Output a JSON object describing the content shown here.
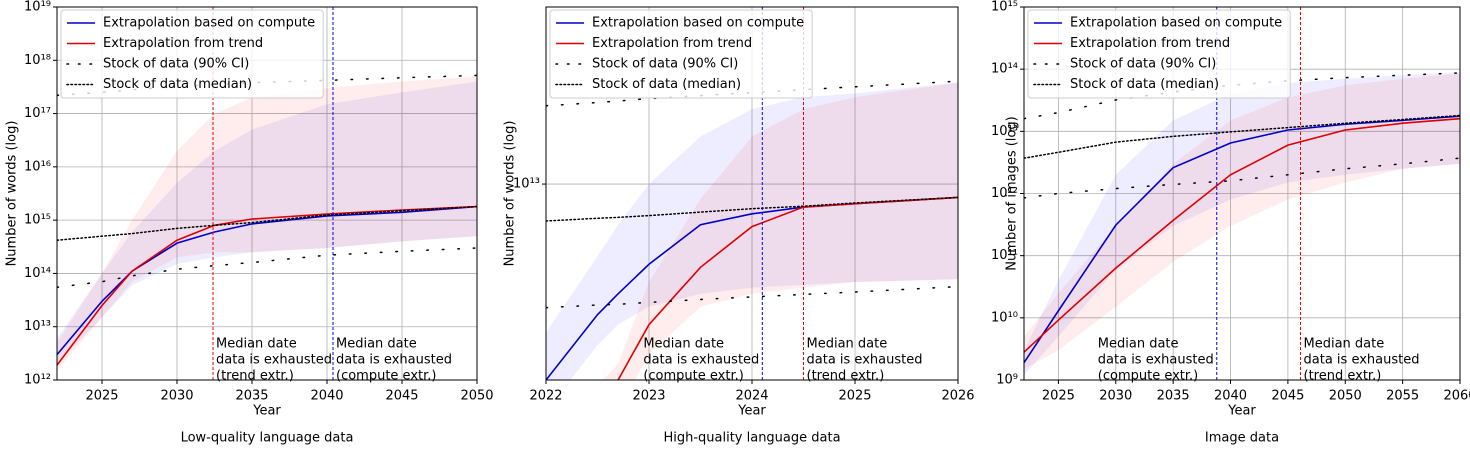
{
  "chart_data": [
    {
      "type": "line",
      "title": "Low-quality language data",
      "xlabel": "Year",
      "ylabel": "Number of words (log)",
      "log_y": true,
      "grid": true,
      "legend": "upper left",
      "xlim": [
        2022,
        2050
      ],
      "xticks": [
        2025,
        2030,
        2035,
        2040,
        2045,
        2050
      ],
      "ylim": [
        1000000000000.0,
        1e+19
      ],
      "yticks": [
        {
          "value": 1000000000000.0,
          "label": "10¹²"
        },
        {
          "value": 10000000000000.0,
          "label": "10¹³"
        },
        {
          "value": 100000000000000.0,
          "label": "10¹⁴"
        },
        {
          "value": 1000000000000000.0,
          "label": "10¹⁵"
        },
        {
          "value": 1e+16,
          "label": "10¹⁶"
        },
        {
          "value": 1e+17,
          "label": "10¹⁷"
        },
        {
          "value": 1e+18,
          "label": "10¹⁸"
        },
        {
          "value": 1e+19,
          "label": "10¹⁹"
        }
      ],
      "x": [
        2022,
        2025,
        2027,
        2030,
        2032.5,
        2035,
        2040,
        2045,
        2050
      ],
      "series": [
        {
          "name": "Extrapolation based on compute",
          "color": "#0000cc",
          "style": "solid",
          "values": [
            3000000000000.0,
            30000000000000.0,
            110000000000000.0,
            370000000000000.0,
            600000000000000.0,
            850000000000000.0,
            1200000000000000.0,
            1400000000000000.0,
            1800000000000000.0
          ]
        },
        {
          "name": "Extrapolation from trend",
          "color": "#dd0000",
          "style": "solid",
          "values": [
            1900000000000.0,
            25000000000000.0,
            110000000000000.0,
            420000000000000.0,
            800000000000000.0,
            1050000000000000.0,
            1300000000000000.0,
            1550000000000000.0,
            1800000000000000.0
          ]
        },
        {
          "name": "Stock of data (90% CI)",
          "color": "#000000",
          "style": "sparse",
          "lower": [
            55000000000000.0,
            70000000000000.0,
            90000000000000.0,
            120000000000000.0,
            140000000000000.0,
            160000000000000.0,
            220000000000000.0,
            260000000000000.0,
            300000000000000.0
          ],
          "upper": [
            2.2e+17,
            2.5e+17,
            2.8e+17,
            3.2e+17,
            3.5e+17,
            3.8e+17,
            4.2e+17,
            4.7e+17,
            5.2e+17
          ]
        },
        {
          "name": "Stock of data (median)",
          "color": "#000000",
          "style": "dotted",
          "values": [
            420000000000000.0,
            500000000000000.0,
            560000000000000.0,
            700000000000000.0,
            800000000000000.0,
            900000000000000.0,
            1250000000000000.0,
            1500000000000000.0,
            1800000000000000.0
          ]
        }
      ],
      "bands": [
        {
          "color": "#0000ff",
          "lower": [
            2000000000000.0,
            15000000000000.0,
            60000000000000.0,
            150000000000000.0,
            200000000000000.0,
            250000000000000.0,
            300000000000000.0,
            400000000000000.0,
            500000000000000.0
          ],
          "upper": [
            6000000000000.0,
            100000000000000.0,
            600000000000000.0,
            5000000000000000.0,
            2e+16,
            5e+16,
            1.5e+17,
            2.5e+17,
            4e+17
          ]
        },
        {
          "color": "#ff0000",
          "lower": [
            1500000000000.0,
            15000000000000.0,
            70000000000000.0,
            200000000000000.0,
            250000000000000.0,
            250000000000000.0,
            300000000000000.0,
            400000000000000.0,
            500000000000000.0
          ],
          "upper": [
            5000000000000.0,
            100000000000000.0,
            1000000000000000.0,
            2e+16,
            1e+17,
            2e+17,
            3e+17,
            4e+17,
            5e+17
          ]
        }
      ],
      "annotations": [
        {
          "x": 2032.4,
          "color": "#ee0000",
          "side": "right",
          "lines": [
            "Median date",
            "data is exhausted",
            "(trend extr.)"
          ]
        },
        {
          "x": 2040.4,
          "color": "#0000ee",
          "side": "right",
          "lines": [
            "Median date",
            "data is exhausted",
            "(compute extr.)"
          ]
        }
      ]
    },
    {
      "type": "line",
      "title": "High-quality language data",
      "xlabel": "Year",
      "ylabel": "Number of words (log)",
      "log_y": true,
      "grid": true,
      "legend": "upper left",
      "xlim": [
        2022,
        2026
      ],
      "xticks": [
        2022,
        2023,
        2024,
        2025,
        2026
      ],
      "ylim": [
        2500000000000.0,
        35000000000000.0
      ],
      "yticks": [
        {
          "value": 10000000000000.0,
          "label": "10¹³"
        }
      ],
      "x": [
        2022,
        2022.5,
        2022.7,
        2023,
        2023.5,
        2024,
        2024.5,
        2025,
        2026
      ],
      "series": [
        {
          "name": "Extrapolation based on compute",
          "color": "#0000cc",
          "style": "solid",
          "values": [
            2500000000000.0,
            3970000000000.0,
            4600000000000.0,
            5670000000000.0,
            7500000000000.0,
            8100000000000.0,
            8500000000000.0,
            8700000000000.0,
            9100000000000.0
          ]
        },
        {
          "name": "Extrapolation from trend",
          "color": "#dd0000",
          "style": "solid",
          "values": [
            null,
            null,
            2500000000000.0,
            3700000000000.0,
            5550000000000.0,
            7400000000000.0,
            8500000000000.0,
            8700000000000.0,
            9100000000000.0
          ]
        },
        {
          "name": "Stock of data (90% CI)",
          "color": "#000000",
          "style": "sparse",
          "lower": [
            4170000000000.0,
            4250000000000.0,
            4270000000000.0,
            4330000000000.0,
            4420000000000.0,
            4500000000000.0,
            4580000000000.0,
            4660000000000.0,
            4840000000000.0
          ],
          "upper": [
            17400000000000.0,
            17800000000000.0,
            18000000000000.0,
            18300000000000.0,
            18700000000000.0,
            19100000000000.0,
            19500000000000.0,
            19900000000000.0,
            20700000000000.0
          ]
        },
        {
          "name": "Stock of data (median)",
          "color": "#000000",
          "style": "dotted",
          "values": [
            7700000000000.0,
            7850000000000.0,
            7900000000000.0,
            8000000000000.0,
            8200000000000.0,
            8400000000000.0,
            8550000000000.0,
            8750000000000.0,
            9100000000000.0
          ]
        }
      ],
      "bands": [
        {
          "color": "#0000ff",
          "lower": [
            2000000000000.0,
            3200000000000.0,
            3700000000000.0,
            4200000000000.0,
            4600000000000.0,
            4800000000000.0,
            4900000000000.0,
            5000000000000.0,
            5100000000000.0
          ],
          "upper": [
            3500000000000.0,
            6000000000000.0,
            7500000000000.0,
            10000000000000.0,
            14000000000000.0,
            17000000000000.0,
            18500000000000.0,
            19000000000000.0,
            20500000000000.0
          ]
        },
        {
          "color": "#ff0000",
          "lower": [
            1500000000000.0,
            1800000000000.0,
            2000000000000.0,
            3000000000000.0,
            4200000000000.0,
            4600000000000.0,
            4800000000000.0,
            5000000000000.0,
            5100000000000.0
          ],
          "upper": [
            2000000000000.0,
            2400000000000.0,
            2800000000000.0,
            5000000000000.0,
            9000000000000.0,
            14000000000000.0,
            17000000000000.0,
            18500000000000.0,
            20500000000000.0
          ]
        }
      ],
      "annotations": [
        {
          "x": 2024.1,
          "color": "#0000ee",
          "side": "left",
          "lines": [
            "Median date",
            "data is exhausted",
            "(compute extr.)"
          ]
        },
        {
          "x": 2024.5,
          "color": "#ee0000",
          "side": "right",
          "lines": [
            "Median date",
            "data is exhausted",
            "(trend extr.)"
          ]
        }
      ]
    },
    {
      "type": "line",
      "title": "Image data",
      "xlabel": "Year",
      "ylabel": "Number of images (log)",
      "log_y": true,
      "grid": true,
      "legend": "upper left",
      "xlim": [
        2022,
        2060
      ],
      "xticks": [
        2025,
        2030,
        2035,
        2040,
        2045,
        2050,
        2055,
        2060
      ],
      "ylim": [
        1000000000.0,
        1000000000000000.0
      ],
      "yticks": [
        {
          "value": 1000000000.0,
          "label": "10⁹"
        },
        {
          "value": 10000000000.0,
          "label": "10¹⁰"
        },
        {
          "value": 100000000000.0,
          "label": "10¹¹"
        },
        {
          "value": 1000000000000.0,
          "label": "10¹²"
        },
        {
          "value": 10000000000000.0,
          "label": "10¹³"
        },
        {
          "value": 100000000000000.0,
          "label": "10¹⁴"
        },
        {
          "value": 1000000000000000.0,
          "label": "10¹⁵"
        }
      ],
      "x": [
        2022,
        2025,
        2030,
        2035,
        2040,
        2045,
        2050,
        2055,
        2060
      ],
      "series": [
        {
          "name": "Extrapolation based on compute",
          "color": "#0000cc",
          "style": "solid",
          "values": [
            1900000000.0,
            13000000000.0,
            310000000000.0,
            2600000000000.0,
            6500000000000.0,
            10500000000000.0,
            13000000000000.0,
            15000000000000.0,
            17500000000000.0
          ]
        },
        {
          "name": "Extrapolation from trend",
          "color": "#dd0000",
          "style": "solid",
          "values": [
            2800000000.0,
            9200000000.0,
            63000000000.0,
            370000000000.0,
            2000000000000.0,
            6000000000000.0,
            10500000000000.0,
            13500000000000.0,
            16000000000000.0
          ]
        },
        {
          "name": "Stock of data (90% CI)",
          "color": "#000000",
          "style": "sparse",
          "lower": [
            850000000000.0,
            1000000000000.0,
            1200000000000.0,
            1400000000000.0,
            1600000000000.0,
            2000000000000.0,
            2500000000000.0,
            3000000000000.0,
            3700000000000.0
          ],
          "upper": [
            16000000000000.0,
            20000000000000.0,
            32000000000000.0,
            43000000000000.0,
            55000000000000.0,
            65000000000000.0,
            73000000000000.0,
            80000000000000.0,
            87000000000000.0
          ]
        },
        {
          "name": "Stock of data (median)",
          "color": "#000000",
          "style": "dotted",
          "values": [
            3700000000000.0,
            4600000000000.0,
            6700000000000.0,
            8300000000000.0,
            9800000000000.0,
            11500000000000.0,
            13500000000000.0,
            15500000000000.0,
            18000000000000.0
          ]
        }
      ],
      "bands": [
        {
          "color": "#0000ff",
          "lower": [
            1200000000.0,
            5000000000.0,
            60000000000.0,
            300000000000.0,
            800000000000.0,
            1500000000000.0,
            2000000000000.0,
            2500000000000.0,
            3000000000000.0
          ],
          "upper": [
            3000000000.0,
            40000000000.0,
            2000000000000.0,
            15000000000000.0,
            40000000000000.0,
            60000000000000.0,
            70000000000000.0,
            80000000000000.0,
            90000000000000.0
          ]
        },
        {
          "color": "#ff0000",
          "lower": [
            1500000000.0,
            3000000000.0,
            15000000000.0,
            80000000000.0,
            300000000000.0,
            800000000000.0,
            1500000000000.0,
            2500000000000.0,
            3000000000000.0
          ],
          "upper": [
            5000000000.0,
            25000000000.0,
            300000000000.0,
            3000000000000.0,
            15000000000000.0,
            35000000000000.0,
            55000000000000.0,
            70000000000000.0,
            85000000000000.0
          ]
        }
      ],
      "annotations": [
        {
          "x": 2038.8,
          "color": "#0000ee",
          "side": "left",
          "lines": [
            "Median date",
            "data is exhausted",
            "(compute extr.)"
          ]
        },
        {
          "x": 2046.1,
          "color": "#ee0000",
          "side": "right",
          "lines": [
            "Median date",
            "data is exhausted",
            "(trend extr.)"
          ]
        }
      ]
    }
  ]
}
